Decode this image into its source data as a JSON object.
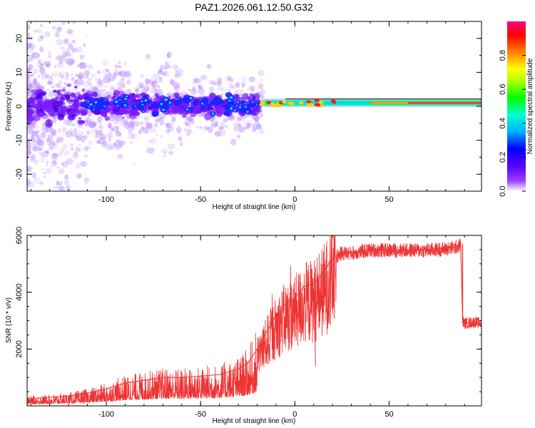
{
  "chart_data": [
    {
      "type": "heatmap",
      "title": "PAZ1.2026.061.12.50.G32",
      "xlabel": "Height of straight line (km)",
      "ylabel": "Frequency (Hz)",
      "xlim": [
        -142,
        99
      ],
      "ylim": [
        -25,
        25
      ],
      "x_ticks": [
        -100,
        -50,
        0,
        50
      ],
      "x_tick_labels": [
        "-100",
        "-50",
        "0",
        "50"
      ],
      "y_ticks": [
        20,
        10,
        0,
        -10,
        -20
      ],
      "y_tick_labels": [
        "20",
        "10",
        "0",
        "-10",
        "-20"
      ],
      "colorbar": {
        "label": "Normalized spectral amplitude",
        "range": [
          0,
          1
        ],
        "ticks": [
          0.0,
          0.2,
          0.4,
          0.6,
          0.8
        ],
        "tick_labels": [
          "0.0",
          "0.2",
          "0.4",
          "0.6",
          "0.8"
        ],
        "colors": [
          "#ffffff",
          "#7a00ff",
          "#0000ff",
          "#00e5ff",
          "#00ff00",
          "#ffff00",
          "#ff8000",
          "#ff0000",
          "#ff0080"
        ]
      },
      "description_points": {
        "noise_region_x": [
          -142,
          -18
        ],
        "signal_start_x": -18,
        "signal_center_freq": 1
      }
    },
    {
      "type": "line",
      "xlabel": "Height of straight line (km)",
      "ylabel": "SNR (10 * v/v)",
      "xlim": [
        -142,
        99
      ],
      "ylim": [
        0,
        6000
      ],
      "x_ticks": [
        -100,
        -50,
        0,
        50
      ],
      "x_tick_labels": [
        "-100",
        "-50",
        "0",
        "50"
      ],
      "y_ticks": [
        2000,
        4000,
        6000
      ],
      "y_tick_labels": [
        "2000",
        "4000",
        "6000"
      ],
      "color": "#ee3333",
      "series": [
        {
          "name": "SNR",
          "x": [
            -142,
            -130,
            -120,
            -110,
            -100,
            -90,
            -80,
            -70,
            -60,
            -50,
            -40,
            -30,
            -25,
            -20,
            -15,
            -10,
            -5,
            0,
            5,
            10,
            15,
            20,
            25,
            30,
            40,
            50,
            60,
            70,
            80,
            85,
            88,
            89,
            90,
            95,
            99
          ],
          "values": [
            250,
            300,
            350,
            450,
            600,
            800,
            900,
            1000,
            1000,
            1050,
            1100,
            1300,
            1500,
            2000,
            2600,
            3200,
            3600,
            3800,
            4200,
            4300,
            4700,
            5200,
            5400,
            5400,
            5500,
            5500,
            5500,
            5500,
            5550,
            5600,
            5700,
            3000,
            2900,
            2950,
            2900
          ]
        }
      ]
    }
  ]
}
